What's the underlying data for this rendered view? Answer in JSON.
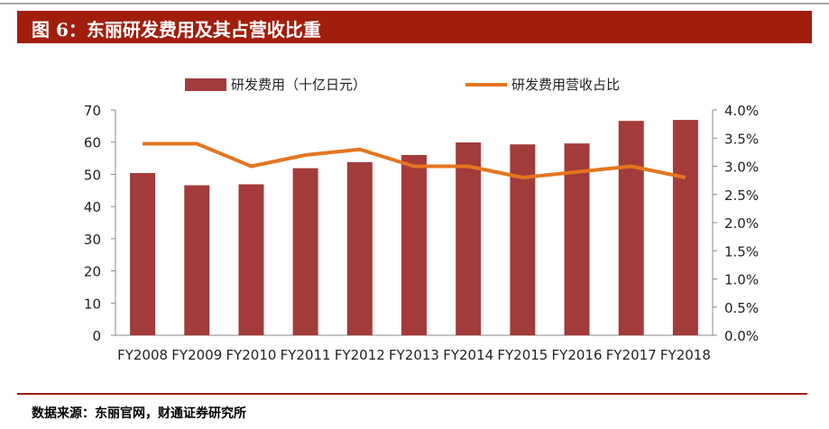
{
  "title": "图 6：东丽研发费用及其占营收比重",
  "source": "数据来源：东丽官网，财通证券研究所",
  "chart_data": {
    "type": "bar",
    "categories": [
      "FY2008",
      "FY2009",
      "FY2010",
      "FY2011",
      "FY2012",
      "FY2013",
      "FY2014",
      "FY2015",
      "FY2016",
      "FY2017",
      "FY2018"
    ],
    "series": [
      {
        "name": "研发费用（十亿日元）",
        "type": "bar",
        "axis": "left",
        "color": "#a33b3a",
        "values": [
          50.4,
          46.6,
          46.9,
          51.9,
          53.8,
          56.0,
          59.9,
          59.3,
          59.6,
          66.6,
          66.9
        ]
      },
      {
        "name": "研发费用营收占比",
        "type": "line",
        "axis": "right",
        "color": "#e5751f",
        "values": [
          3.4,
          3.4,
          3.0,
          3.2,
          3.3,
          3.0,
          3.0,
          2.8,
          2.9,
          3.0,
          2.8
        ]
      }
    ],
    "ylim": [
      0,
      70
    ],
    "yticks": [
      "0",
      "10",
      "20",
      "30",
      "40",
      "50",
      "60",
      "70"
    ],
    "y2lim": [
      0,
      4.0
    ],
    "y2ticks": [
      "0.0%",
      "0.5%",
      "1.0%",
      "1.5%",
      "2.0%",
      "2.5%",
      "3.0%",
      "3.5%",
      "4.0%"
    ],
    "legend": "top",
    "grid": false
  }
}
